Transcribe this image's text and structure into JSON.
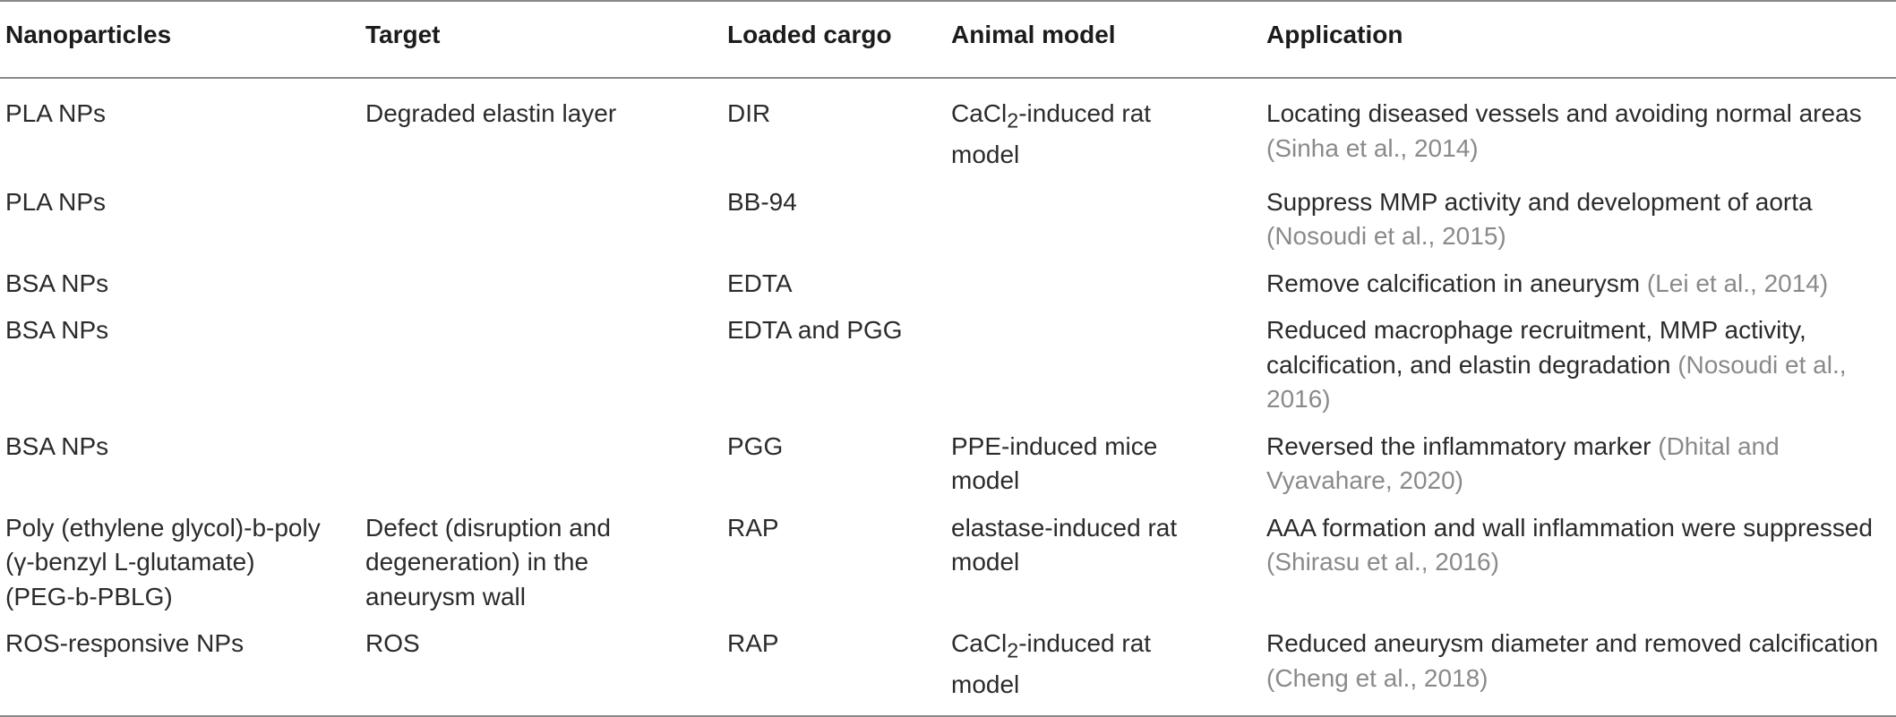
{
  "headers": {
    "nanoparticles": "Nanoparticles",
    "target": "Target",
    "cargo": "Loaded cargo",
    "animal": "Animal model",
    "application": "Application"
  },
  "rows": [
    {
      "np": "PLA NPs",
      "target": "Degraded elastin layer",
      "cargo": "DIR",
      "animal_prefix": "CaCl",
      "animal_sub": "2",
      "animal_suffix": "-induced rat",
      "animal_line2": "model",
      "app_line1": "Locating diseased vessels and avoiding normal areas",
      "app_cite": "(Sinha et al., 2014)"
    },
    {
      "np": "PLA NPs",
      "target": "",
      "cargo": "BB-94",
      "animal": "",
      "app_line1": "Suppress MMP activity and development of aorta",
      "app_cite": "(Nosoudi et al., 2015)"
    },
    {
      "np": "BSA NPs",
      "target": "",
      "cargo": "EDTA",
      "animal": "",
      "app_text": "Remove calcification in aneurysm ",
      "app_cite": "(Lei et al., 2014)"
    },
    {
      "np": "BSA NPs",
      "target": "",
      "cargo": "EDTA and PGG",
      "animal": "",
      "app_line1": "Reduced macrophage recruitment, MMP activity,",
      "app_line2_text": "calcification, and elastin degradation ",
      "app_line2_cite": "(Nosoudi et al.,",
      "app_line3_cite": "2016)"
    },
    {
      "np": "BSA NPs",
      "target": "",
      "cargo": "PGG",
      "animal_line1": "PPE-induced mice",
      "animal_line2": "model",
      "app_line1_text": "Reversed the inflammatory marker ",
      "app_line1_cite": "(Dhital and",
      "app_line2_cite": "Vyavahare, 2020)"
    },
    {
      "np_line1": "Poly (ethylene glycol)-b-poly",
      "np_line2": "(γ-benzyl L-glutamate)",
      "np_line3": "(PEG-b-PBLG)",
      "target_line1": "Defect (disruption and",
      "target_line2": "degeneration) in the",
      "target_line3": "aneurysm wall",
      "cargo": "RAP",
      "animal_line1": "elastase-induced rat",
      "animal_line2": "model",
      "app_line1": "AAA formation and wall inflammation were suppressed",
      "app_cite": "(Shirasu et al., 2016)"
    },
    {
      "np": "ROS-responsive NPs",
      "target": "ROS",
      "cargo": "RAP",
      "animal_prefix": "CaCl",
      "animal_sub": "2",
      "animal_suffix": "-induced rat",
      "animal_line2": "model",
      "app_line1": "Reduced aneurysm diameter and removed calcification",
      "app_cite": "(Cheng et al., 2018)"
    }
  ]
}
